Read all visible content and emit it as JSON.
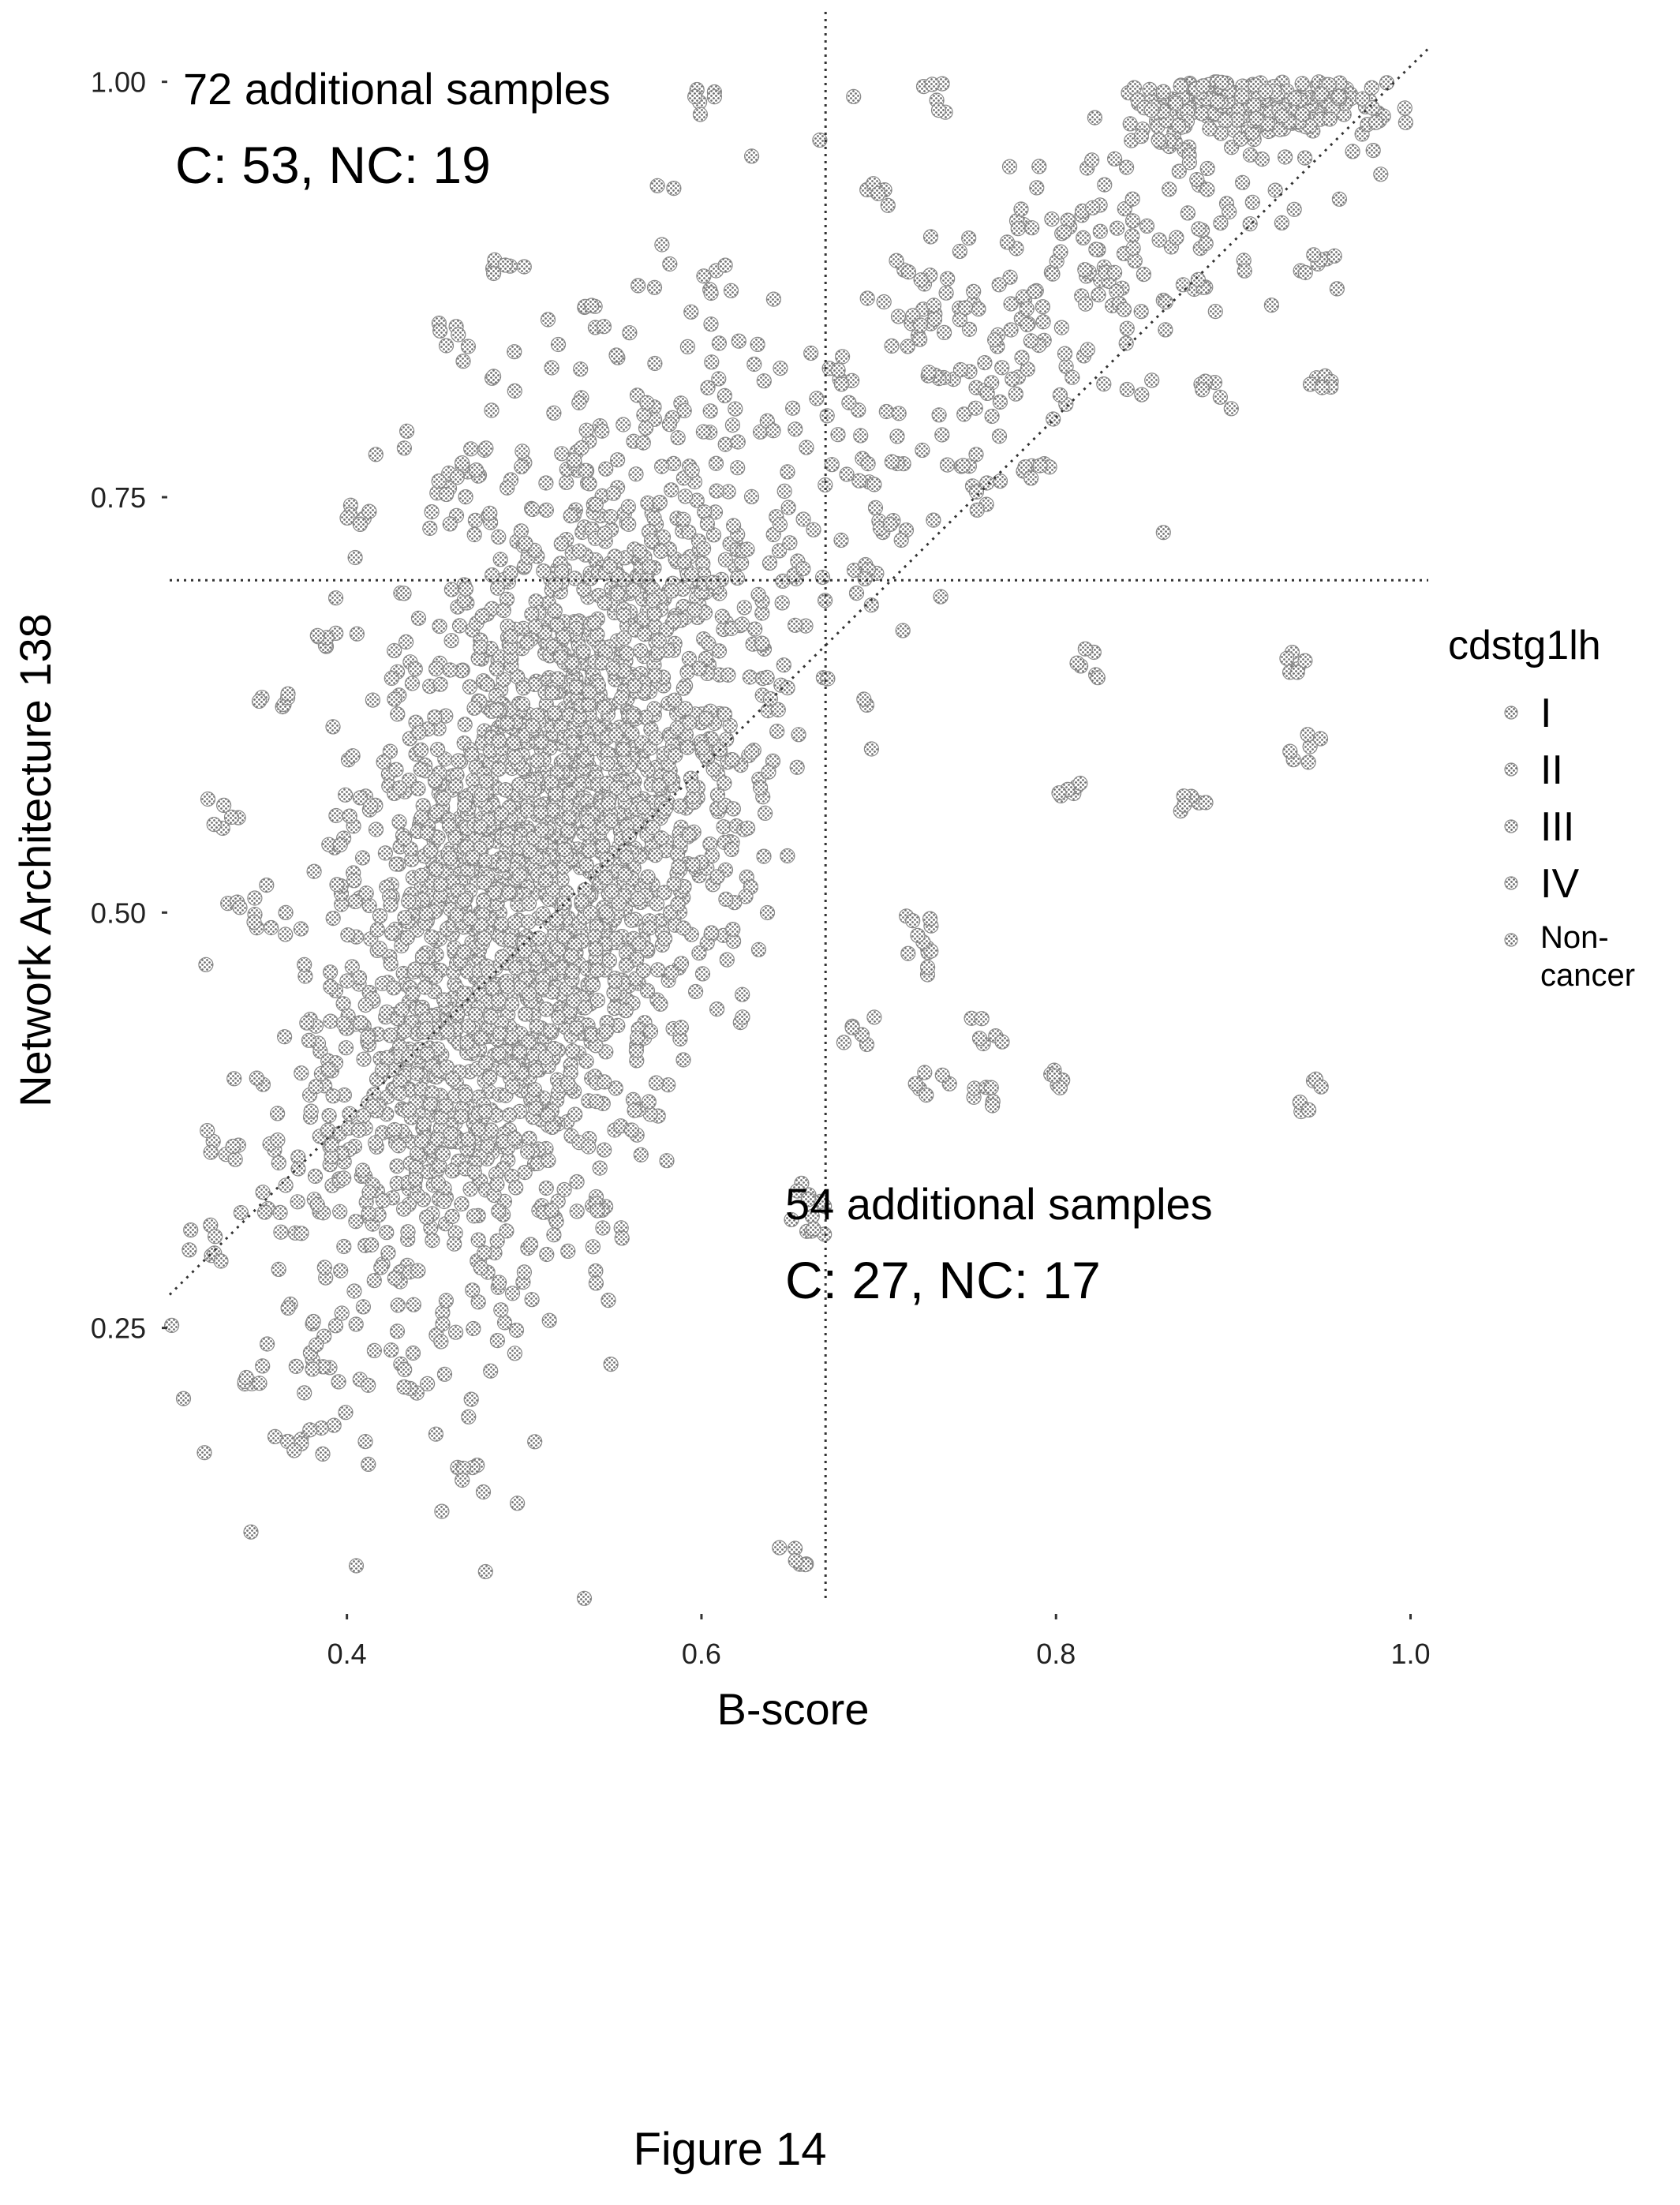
{
  "chart_data": {
    "type": "scatter",
    "title": "",
    "xlabel": "B-score",
    "ylabel": "Network Architecture 138",
    "xlim": [
      0.3,
      1.01
    ],
    "ylim": [
      0.085,
      1.035
    ],
    "x_ticks": [
      0.4,
      0.6,
      0.8,
      1.0
    ],
    "x_tick_labels": [
      "0.4",
      "0.6",
      "0.8",
      "1.0"
    ],
    "y_ticks": [
      0.25,
      0.5,
      0.75,
      1.0
    ],
    "y_tick_labels": [
      "0.25",
      "0.50",
      "0.75",
      "1.00"
    ],
    "grid": false,
    "reference_lines": {
      "vertical_x": 0.67,
      "horizontal_y": 0.7,
      "diagonal": "y = x"
    },
    "annotations": [
      {
        "line1": "72 additional samples",
        "line2": "C: 53, NC: 19",
        "x": 0.39,
        "y": 1.01,
        "quadrant": "upper-left"
      },
      {
        "line1": "54 additional samples",
        "line2": "C: 27, NC: 17",
        "x": 0.65,
        "y": 0.31,
        "quadrant": "lower-right"
      }
    ],
    "legend": {
      "title": "cdstg1lh",
      "position": "right",
      "entries": [
        "I",
        "II",
        "III",
        "IV",
        "Non-cancer"
      ],
      "entry_lines": [
        [
          "I"
        ],
        [
          "II"
        ],
        [
          "III"
        ],
        [
          "IV"
        ],
        [
          "Non-",
          "cancer"
        ]
      ]
    },
    "series_color": "#8a8a8a",
    "point_groups": [
      {
        "desc": "main cloud",
        "cx": 0.51,
        "cy": 0.53,
        "sx": 0.065,
        "sy": 0.13,
        "n": 2600,
        "corr": 0.55
      },
      {
        "desc": "upper right band",
        "cx": 0.8,
        "cy": 0.87,
        "sx": 0.07,
        "sy": 0.06,
        "n": 260,
        "corr": 0.7
      },
      {
        "desc": "top right cluster",
        "cx": 0.91,
        "cy": 0.985,
        "sx": 0.04,
        "sy": 0.012,
        "n": 260,
        "corr": 0.0
      }
    ],
    "points": [
      [
        0.65,
        0.11
      ],
      [
        0.53,
        0.08
      ],
      [
        0.94,
        0.39
      ],
      [
        0.8,
        0.4
      ],
      [
        0.76,
        0.43
      ],
      [
        0.73,
        0.4
      ],
      [
        0.76,
        0.39
      ],
      [
        0.88,
        0.57
      ],
      [
        0.81,
        0.57
      ],
      [
        0.94,
        0.6
      ],
      [
        0.94,
        0.65
      ],
      [
        0.82,
        0.65
      ],
      [
        0.72,
        0.47
      ],
      [
        0.72,
        0.49
      ],
      [
        0.69,
        0.43
      ],
      [
        0.66,
        0.33
      ],
      [
        0.66,
        0.31
      ],
      [
        0.49,
        0.89
      ],
      [
        0.46,
        0.85
      ],
      [
        0.6,
        0.99
      ],
      [
        0.54,
        0.86
      ],
      [
        0.61,
        0.88
      ],
      [
        0.73,
        0.99
      ],
      [
        0.7,
        0.93
      ],
      [
        0.33,
        0.56
      ],
      [
        0.34,
        0.5
      ],
      [
        0.33,
        0.36
      ],
      [
        0.32,
        0.3
      ],
      [
        0.38,
        0.18
      ],
      [
        0.47,
        0.16
      ],
      [
        0.44,
        0.22
      ],
      [
        0.38,
        0.23
      ],
      [
        0.35,
        0.22
      ],
      [
        0.95,
        0.82
      ],
      [
        0.95,
        0.89
      ],
      [
        0.89,
        0.81
      ],
      [
        0.79,
        0.77
      ],
      [
        0.76,
        0.75
      ],
      [
        0.41,
        0.74
      ],
      [
        0.36,
        0.63
      ],
      [
        0.39,
        0.67
      ],
      [
        0.46,
        0.76
      ],
      [
        0.47,
        0.77
      ],
      [
        0.71,
        0.73
      ],
      [
        0.69,
        0.7
      ]
    ]
  },
  "caption": "Figure 14"
}
